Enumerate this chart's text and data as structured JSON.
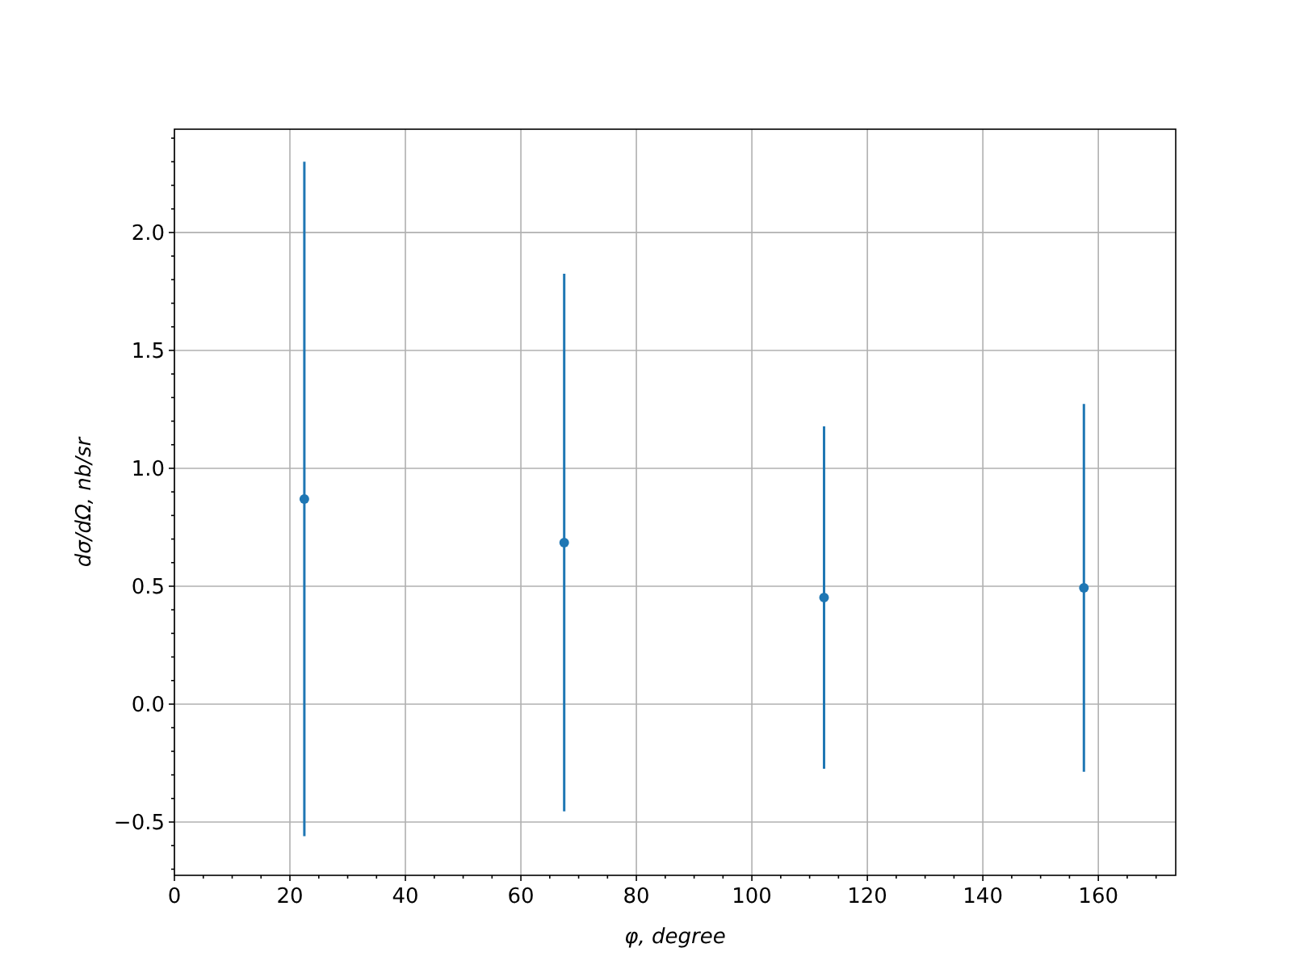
{
  "chart_data": {
    "type": "scatter",
    "xlabel": "φ, degree",
    "ylabel": "dσ/dΩ, nb/sr",
    "x": [
      22.5,
      67.5,
      112.5,
      157.5
    ],
    "series": [
      {
        "color": "#1f77b4",
        "values": [
          0.87,
          0.685,
          0.452,
          0.493
        ],
        "errors": [
          1.43,
          1.14,
          0.726,
          0.78
        ]
      }
    ],
    "xlim": [
      0,
      173.4
    ],
    "ylim": [
      -0.726,
      2.438
    ],
    "xticks": [
      0,
      {
        "value": 5,
        "label": null
      },
      {
        "value": 10,
        "label": null
      },
      {
        "value": 15,
        "label": null
      },
      20,
      {
        "value": 25,
        "label": null
      },
      {
        "value": 30,
        "label": null
      },
      {
        "value": 35,
        "label": null
      },
      40,
      {
        "value": 45,
        "label": null
      },
      {
        "value": 50,
        "label": null
      },
      {
        "value": 55,
        "label": null
      },
      60,
      {
        "value": 65,
        "label": null
      },
      {
        "value": 70,
        "label": null
      },
      {
        "value": 75,
        "label": null
      },
      80,
      {
        "value": 85,
        "label": null
      },
      {
        "value": 90,
        "label": null
      },
      {
        "value": 95,
        "label": null
      },
      100,
      {
        "value": 105,
        "label": null
      },
      {
        "value": 110,
        "label": null
      },
      {
        "value": 115,
        "label": null
      },
      120,
      {
        "value": 125,
        "label": null
      },
      {
        "value": 130,
        "label": null
      },
      {
        "value": 135,
        "label": null
      },
      140,
      {
        "value": 145,
        "label": null
      },
      {
        "value": 150,
        "label": null
      },
      {
        "value": 155,
        "label": null
      },
      160,
      {
        "value": 165,
        "label": null
      },
      {
        "value": 170,
        "label": null
      }
    ],
    "yticks": [
      {
        "value": -0.7,
        "label": null
      },
      {
        "value": -0.6,
        "label": null
      },
      {
        "value": -0.5,
        "label": "−0.5"
      },
      {
        "value": -0.4,
        "label": null
      },
      {
        "value": -0.3,
        "label": null
      },
      {
        "value": -0.2,
        "label": null
      },
      {
        "value": -0.1,
        "label": null
      },
      {
        "value": 0,
        "label": "0.0"
      },
      {
        "value": 0.1,
        "label": null
      },
      {
        "value": 0.2,
        "label": null
      },
      {
        "value": 0.3,
        "label": null
      },
      {
        "value": 0.4,
        "label": null
      },
      {
        "value": 0.5,
        "label": "0.5"
      },
      {
        "value": 0.6,
        "label": null
      },
      {
        "value": 0.7,
        "label": null
      },
      {
        "value": 0.8,
        "label": null
      },
      {
        "value": 0.9,
        "label": null
      },
      {
        "value": 1,
        "label": "1.0"
      },
      {
        "value": 1.1,
        "label": null
      },
      {
        "value": 1.2,
        "label": null
      },
      {
        "value": 1.3,
        "label": null
      },
      {
        "value": 1.4,
        "label": null
      },
      {
        "value": 1.5,
        "label": "1.5"
      },
      {
        "value": 1.6,
        "label": null
      },
      {
        "value": 1.7,
        "label": null
      },
      {
        "value": 1.8,
        "label": null
      },
      {
        "value": 1.9,
        "label": null
      },
      {
        "value": 2,
        "label": "2.0"
      },
      {
        "value": 2.1,
        "label": null
      },
      {
        "value": 2.2,
        "label": null
      },
      {
        "value": 2.3,
        "label": null
      },
      {
        "value": 2.4,
        "label": null
      }
    ],
    "grid": true,
    "marker": "circle"
  }
}
